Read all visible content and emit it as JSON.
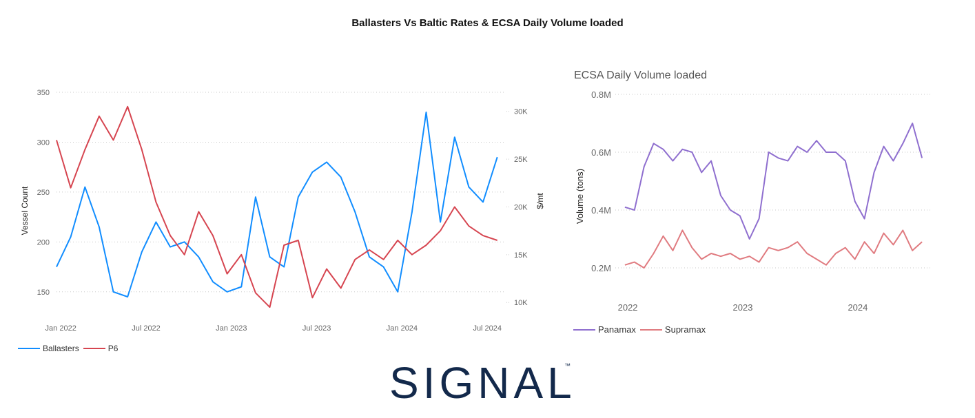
{
  "title": "Ballasters Vs Baltic Rates & ECSA Daily Volume loaded",
  "logo": {
    "text": "SIGNAL",
    "tm": "™",
    "color": "#13294b"
  },
  "chart_data": [
    {
      "type": "line",
      "title": "",
      "xlabel": "",
      "ylabel": "Vessel Count",
      "y2label": "$/mt",
      "x_ticks": [
        "Jan 2022",
        "Jul 2022",
        "Jan 2023",
        "Jul 2023",
        "Jan 2024",
        "Jul 2024"
      ],
      "y_ticks": [
        150,
        200,
        250,
        300,
        350
      ],
      "y2_ticks": [
        "10K",
        "15K",
        "20K",
        "25K",
        "30K"
      ],
      "ylim": [
        125,
        350
      ],
      "y2lim": [
        8500,
        32000
      ],
      "grid": true,
      "legend_position": "bottom-left",
      "x_months": [
        0,
        1,
        2,
        3,
        4,
        5,
        6,
        7,
        8,
        9,
        10,
        11,
        12,
        13,
        14,
        15,
        16,
        17,
        18,
        19,
        20,
        21,
        22,
        23,
        24,
        25,
        26,
        27,
        28,
        29,
        30,
        31
      ],
      "series": [
        {
          "name": "Ballasters",
          "axis": "left",
          "color": "#118DFF",
          "values": [
            175,
            205,
            255,
            215,
            150,
            145,
            190,
            220,
            195,
            200,
            185,
            160,
            150,
            155,
            245,
            185,
            175,
            245,
            270,
            280,
            265,
            230,
            185,
            175,
            150,
            230,
            330,
            220,
            305,
            255,
            240,
            285
          ]
        },
        {
          "name": "P6",
          "axis": "right",
          "color": "#D64550",
          "values": [
            27000,
            22000,
            26000,
            29500,
            27000,
            30500,
            26000,
            20500,
            17000,
            15000,
            19500,
            17000,
            13000,
            15000,
            11000,
            9500,
            16000,
            16500,
            10500,
            13500,
            11500,
            14500,
            15500,
            14500,
            16500,
            15000,
            16000,
            17500,
            20000,
            18000,
            17000,
            16500
          ]
        }
      ]
    },
    {
      "type": "line",
      "title": "ECSA Daily Volume loaded",
      "xlabel": "",
      "ylabel": "Volume (tons)",
      "x_ticks": [
        "2022",
        "2023",
        "2024"
      ],
      "y_ticks": [
        "0.2M",
        "0.4M",
        "0.6M",
        "0.8M"
      ],
      "ylim": [
        0.15,
        0.8
      ],
      "grid": true,
      "legend_position": "bottom-left",
      "x_months": [
        0,
        1,
        2,
        3,
        4,
        5,
        6,
        7,
        8,
        9,
        10,
        11,
        12,
        13,
        14,
        15,
        16,
        17,
        18,
        19,
        20,
        21,
        22,
        23,
        24,
        25,
        26,
        27,
        28,
        29,
        30,
        31
      ],
      "series": [
        {
          "name": "Panamax",
          "color": "#8F6FCF",
          "values": [
            0.41,
            0.4,
            0.55,
            0.63,
            0.61,
            0.57,
            0.61,
            0.6,
            0.53,
            0.57,
            0.45,
            0.4,
            0.38,
            0.3,
            0.37,
            0.6,
            0.58,
            0.57,
            0.62,
            0.6,
            0.64,
            0.6,
            0.6,
            0.57,
            0.43,
            0.37,
            0.53,
            0.62,
            0.57,
            0.63,
            0.7,
            0.58
          ]
        },
        {
          "name": "Supramax",
          "color": "#E07B80",
          "values": [
            0.21,
            0.22,
            0.2,
            0.25,
            0.31,
            0.26,
            0.33,
            0.27,
            0.23,
            0.25,
            0.24,
            0.25,
            0.23,
            0.24,
            0.22,
            0.27,
            0.26,
            0.27,
            0.29,
            0.25,
            0.23,
            0.21,
            0.25,
            0.27,
            0.23,
            0.29,
            0.25,
            0.32,
            0.28,
            0.33,
            0.26,
            0.29
          ]
        }
      ]
    }
  ]
}
